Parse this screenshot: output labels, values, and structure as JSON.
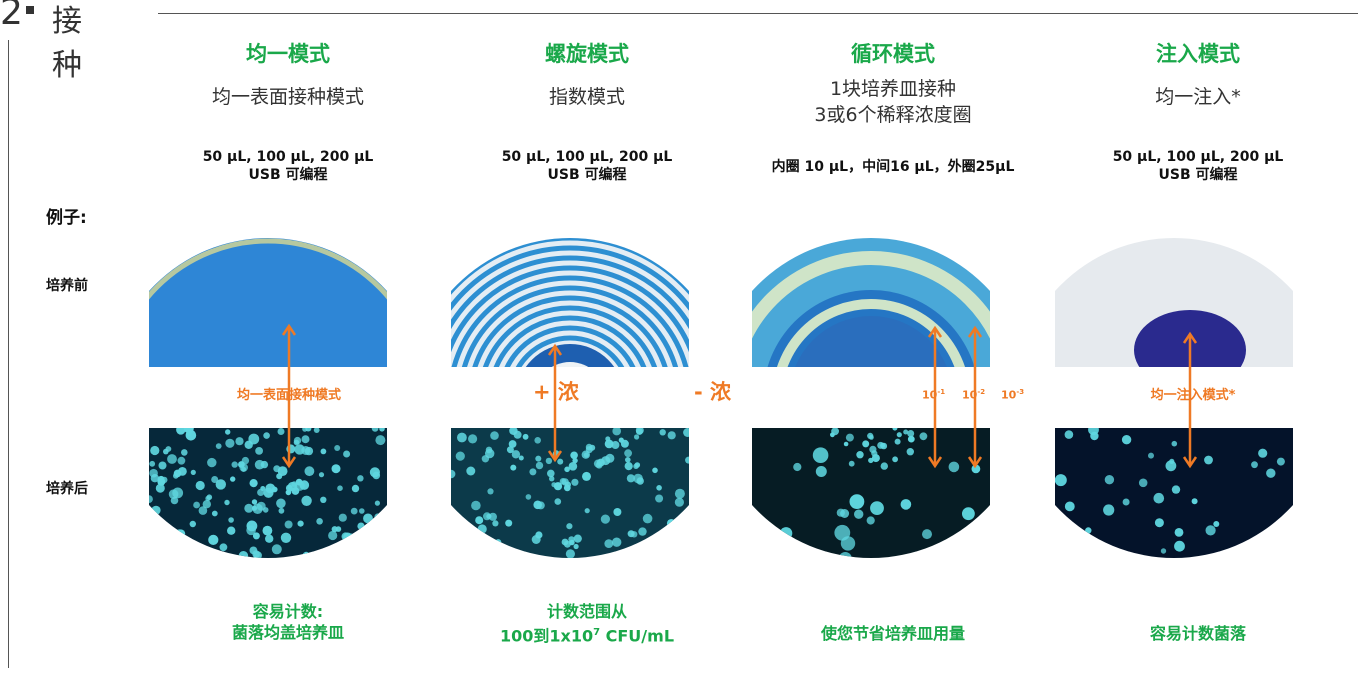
{
  "header": {
    "number": "2",
    "title": "接种"
  },
  "row_labels": {
    "example": "例子:",
    "before": "培养前",
    "after": "培养后"
  },
  "colors": {
    "green": "#1aa84a",
    "orange": "#ef7a25",
    "agar_blue": "#2e86d6",
    "dark_plate": "#06283a",
    "colony": "#5fd7e0"
  },
  "columns": [
    {
      "title": "均一模式",
      "subtitle": "均一表面接种模式",
      "volume_line1": "50 µL, 100 µL, 200 µL",
      "volume_line2": "USB 可编程",
      "middle_label": "均一表面接种模式",
      "footer_line1": "容易计数:",
      "footer_line2": "菌落均盖培养皿"
    },
    {
      "title": "螺旋模式",
      "subtitle": "指数模式",
      "volume_line1": "50 µL, 100 µL, 200 µL",
      "volume_line2": "USB 可编程",
      "middle_plus": "+ 浓",
      "middle_minus": "- 浓",
      "footer_line1": "计数范围从",
      "footer_line2": "100到1x10",
      "footer_sup": "7",
      "footer_tail": " CFU/mL"
    },
    {
      "title": "循环模式",
      "subtitle_line1": "1块培养皿接种",
      "subtitle_line2": "3或6个稀释浓度圈",
      "volume_line1": "内圈 10 µL，中间16 µL，外圈25µL",
      "dilutions": [
        {
          "base": "10",
          "exp": "-1"
        },
        {
          "base": "10",
          "exp": "-2"
        },
        {
          "base": "10",
          "exp": "-3"
        }
      ],
      "footer_line1": "使您节省培养皿用量"
    },
    {
      "title": "注入模式",
      "subtitle": "均一注入*",
      "volume_line1": "50 µL, 100 µL, 200 µL",
      "volume_line2": "USB 可编程",
      "middle_label": "均一注入模式*",
      "footer_line1": "容易计数菌落"
    }
  ]
}
